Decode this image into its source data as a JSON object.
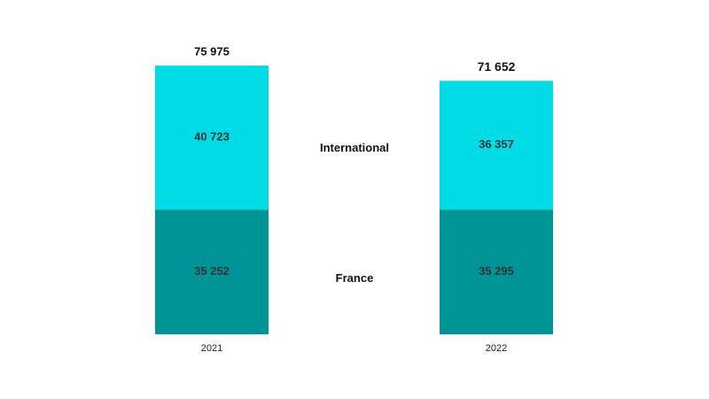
{
  "chart_data": {
    "type": "stacked_bar",
    "categories": [
      "2021",
      "2022"
    ],
    "series": [
      {
        "name": "France",
        "color": "#009496",
        "values": [
          35252,
          35295
        ],
        "value_labels": [
          "35 252",
          "35 295"
        ]
      },
      {
        "name": "International",
        "color": "#00dce6",
        "values": [
          40723,
          36357
        ],
        "value_labels": [
          "40 723",
          "36 357"
        ]
      }
    ],
    "totals": [
      75975,
      71652
    ],
    "total_labels": [
      "75 975",
      "71 652"
    ]
  }
}
